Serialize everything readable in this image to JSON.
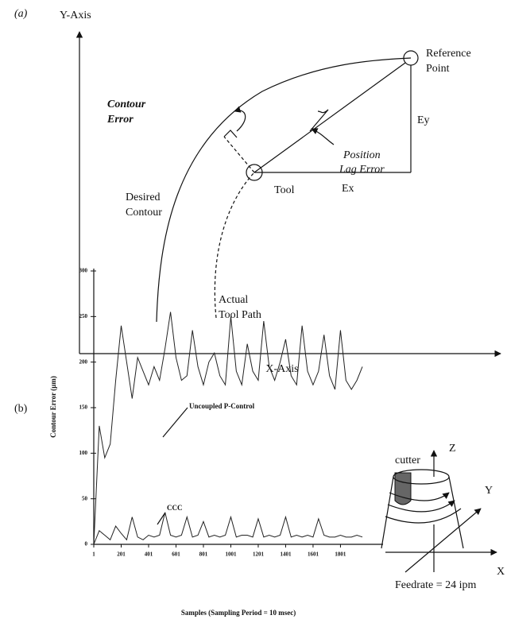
{
  "diagram": {
    "label": "(a)",
    "y_axis": "Y-Axis",
    "x_axis": "X-Axis",
    "contour_error": [
      "Contour",
      "Error"
    ],
    "reference_point": [
      "Reference",
      "Point"
    ],
    "position_lag_error": [
      "Position",
      "Lag Error"
    ],
    "ey": "Ey",
    "ex": "Ex",
    "tool": "Tool",
    "desired_contour": [
      "Desired",
      "Contour"
    ],
    "actual_tool_path": [
      "Actual",
      "Tool Path"
    ]
  },
  "panel_b_label": "(b)",
  "chart_data": {
    "type": "line",
    "ylabel": "Contour Error (µm)",
    "xlabel": "Samples (Sampling Period = 10 msec)",
    "xlim": [
      1,
      2100
    ],
    "ylim": [
      0,
      300
    ],
    "xticks": [
      1,
      201,
      401,
      601,
      801,
      1001,
      1201,
      1401,
      1601,
      1801
    ],
    "yticks": [
      0,
      50,
      100,
      150,
      200,
      250,
      300
    ],
    "x": [
      1,
      41,
      81,
      121,
      161,
      201,
      241,
      281,
      321,
      361,
      401,
      441,
      481,
      521,
      561,
      601,
      641,
      681,
      721,
      761,
      801,
      841,
      881,
      921,
      961,
      1001,
      1041,
      1081,
      1121,
      1161,
      1201,
      1241,
      1281,
      1321,
      1361,
      1401,
      1441,
      1481,
      1521,
      1561,
      1601,
      1641,
      1681,
      1721,
      1761,
      1801,
      1841,
      1881,
      1921,
      1961
    ],
    "series": [
      {
        "name": "Uncoupled P-Control",
        "color": "#222222",
        "values": [
          0,
          130,
          95,
          110,
          180,
          240,
          200,
          160,
          205,
          190,
          175,
          195,
          180,
          215,
          255,
          205,
          180,
          185,
          235,
          195,
          175,
          200,
          210,
          185,
          175,
          250,
          190,
          175,
          220,
          190,
          180,
          245,
          195,
          180,
          200,
          225,
          185,
          175,
          240,
          190,
          175,
          190,
          230,
          185,
          170,
          235,
          180,
          170,
          180,
          195
        ]
      },
      {
        "name": "CCC",
        "color": "#222222",
        "values": [
          0,
          15,
          10,
          5,
          20,
          12,
          5,
          30,
          8,
          5,
          10,
          8,
          10,
          35,
          10,
          8,
          10,
          30,
          8,
          10,
          25,
          8,
          10,
          8,
          10,
          30,
          8,
          10,
          10,
          8,
          28,
          8,
          10,
          8,
          10,
          30,
          8,
          10,
          8,
          10,
          8,
          28,
          10,
          8,
          8,
          10,
          8,
          8,
          10,
          8
        ]
      }
    ]
  },
  "inset": {
    "cutter": "cutter",
    "z": "Z",
    "y": "Y",
    "x": "X",
    "feedrate": "Feedrate = 24 ipm"
  }
}
